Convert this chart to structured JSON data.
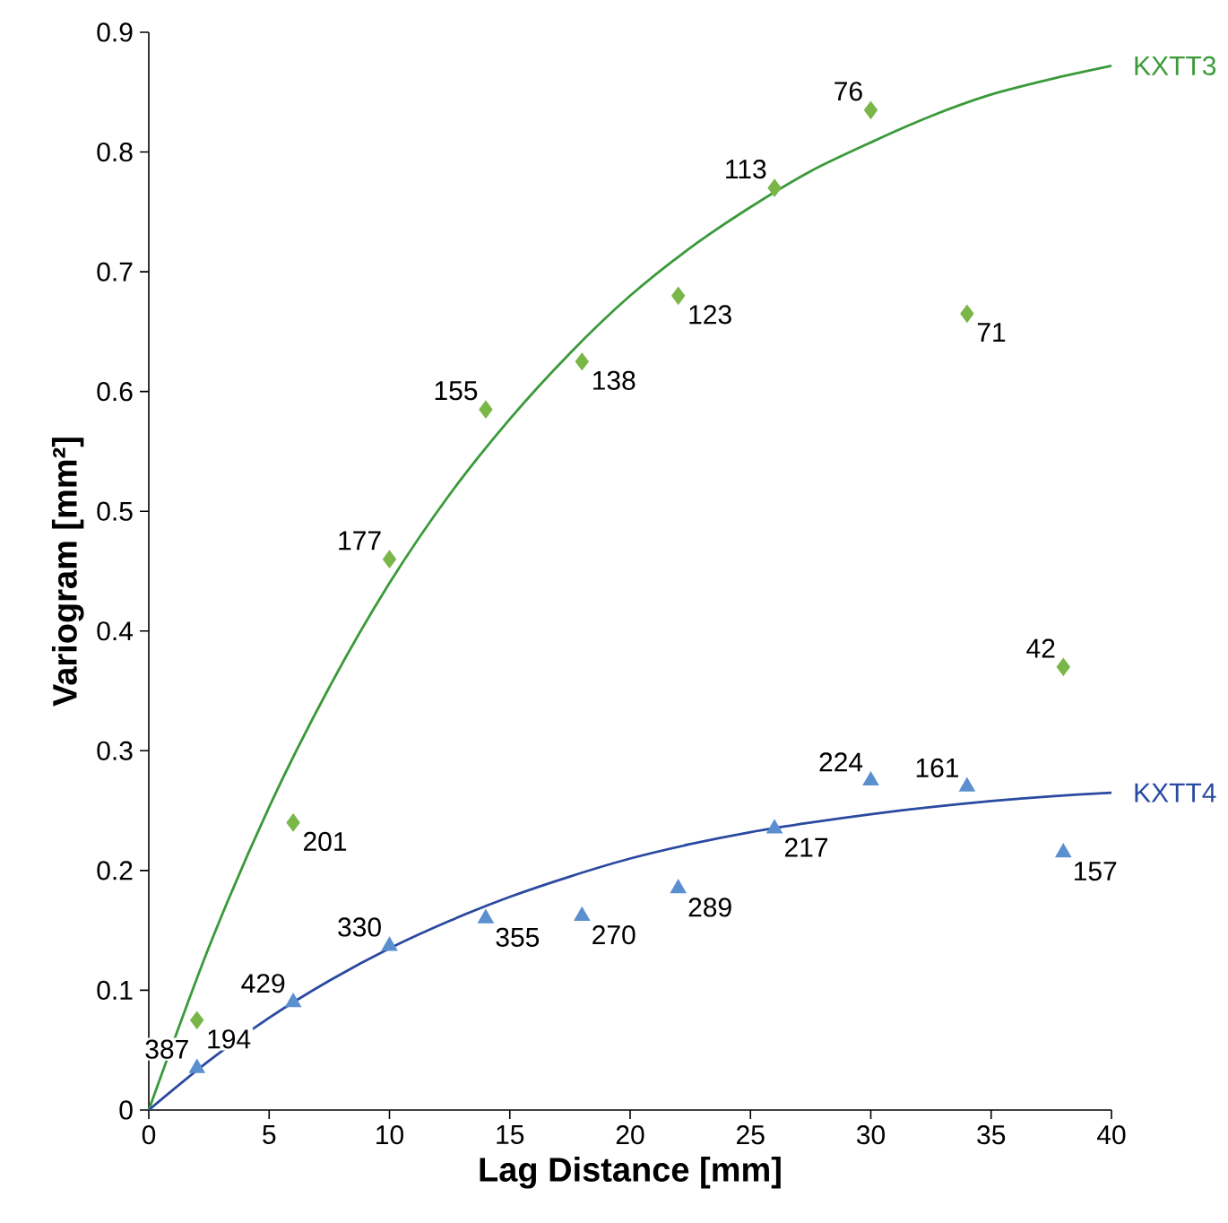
{
  "chart_data": {
    "type": "scatter",
    "xlabel": "Lag Distance  [mm]",
    "ylabel": "Variogram  [mm²]",
    "xlim": [
      0,
      40
    ],
    "ylim": [
      0,
      0.9
    ],
    "xticks": [
      0,
      5,
      10,
      15,
      20,
      25,
      30,
      35,
      40
    ],
    "yticks": [
      0,
      0.1,
      0.2,
      0.3,
      0.4,
      0.5,
      0.6,
      0.7,
      0.8,
      0.9
    ],
    "series": [
      {
        "color": "#7ab648",
        "marker": "diamond",
        "x": [
          2,
          6,
          10,
          14,
          18,
          22,
          26,
          30,
          34,
          38
        ],
        "values": [
          0.075,
          0.24,
          0.46,
          0.585,
          0.625,
          0.68,
          0.77,
          0.835,
          0.665,
          0.37
        ]
      },
      {
        "color": "#5b8fd0",
        "marker": "triangle",
        "x": [
          2,
          6,
          10,
          14,
          18,
          22,
          26,
          30,
          34,
          38
        ],
        "values": [
          0.035,
          0.09,
          0.137,
          0.16,
          0.162,
          0.185,
          0.235,
          0.275,
          0.27,
          0.215
        ]
      },
      {
        "type": "line",
        "name": "KXTT3",
        "color": "#3a9a3a",
        "marker": "none",
        "x": [
          0,
          2.5,
          5,
          7.5,
          10,
          12.5,
          15,
          17.5,
          20,
          22.5,
          25,
          27.5,
          30,
          32.5,
          35,
          37.5,
          40
        ],
        "values": [
          0,
          0.136,
          0.253,
          0.353,
          0.44,
          0.514,
          0.577,
          0.632,
          0.68,
          0.72,
          0.754,
          0.784,
          0.808,
          0.83,
          0.848,
          0.861,
          0.872
        ]
      },
      {
        "type": "line",
        "name": "KXTT4",
        "color": "#2a4aa0",
        "marker": "none",
        "x": [
          0,
          2.5,
          5,
          7.5,
          10,
          12.5,
          15,
          17.5,
          20,
          22.5,
          25,
          27.5,
          30,
          32.5,
          35,
          37.5,
          40
        ],
        "values": [
          0,
          0.041,
          0.077,
          0.108,
          0.135,
          0.158,
          0.178,
          0.195,
          0.21,
          0.222,
          0.232,
          0.24,
          0.247,
          0.253,
          0.258,
          0.262,
          0.265
        ]
      }
    ],
    "annotations": [
      {
        "text": "194",
        "x": 2,
        "y": 0.075
      },
      {
        "text": "201",
        "x": 6,
        "y": 0.24
      },
      {
        "text": "177",
        "x": 10,
        "y": 0.46
      },
      {
        "text": "155",
        "x": 14,
        "y": 0.585
      },
      {
        "text": "138",
        "x": 18,
        "y": 0.625
      },
      {
        "text": "123",
        "x": 22,
        "y": 0.68
      },
      {
        "text": "113",
        "x": 26,
        "y": 0.77
      },
      {
        "text": "76",
        "x": 30,
        "y": 0.835
      },
      {
        "text": "71",
        "x": 34,
        "y": 0.665
      },
      {
        "text": "42",
        "x": 38,
        "y": 0.37
      },
      {
        "text": "387",
        "x": 2,
        "y": 0.035
      },
      {
        "text": "429",
        "x": 6,
        "y": 0.09
      },
      {
        "text": "330",
        "x": 10,
        "y": 0.137
      },
      {
        "text": "355",
        "x": 14,
        "y": 0.16
      },
      {
        "text": "270",
        "x": 18,
        "y": 0.162
      },
      {
        "text": "289",
        "x": 22,
        "y": 0.185
      },
      {
        "text": "217",
        "x": 26,
        "y": 0.235
      },
      {
        "text": "224",
        "x": 30,
        "y": 0.275
      },
      {
        "text": "161",
        "x": 34,
        "y": 0.27
      },
      {
        "text": "157",
        "x": 38,
        "y": 0.215
      }
    ]
  }
}
